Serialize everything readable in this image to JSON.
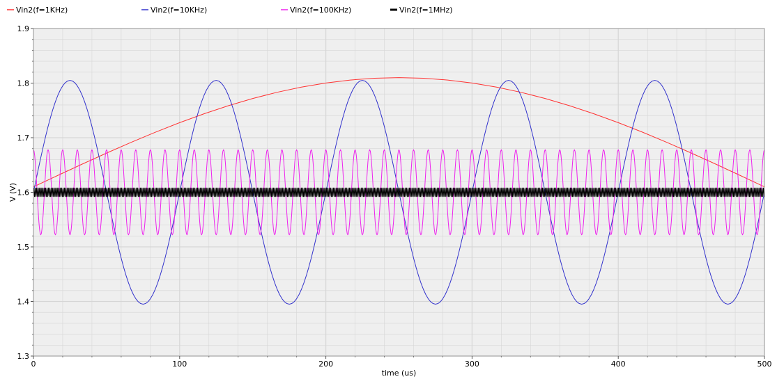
{
  "chart_data": {
    "type": "line",
    "title": "",
    "xlabel": "time (us)",
    "ylabel": "V (V)",
    "xlim": [
      0,
      500
    ],
    "ylim": [
      1.3,
      1.9
    ],
    "xticks": [
      "0",
      "100",
      "200",
      "300",
      "400",
      "500"
    ],
    "yticks": [
      "1.3",
      "1.4",
      "1.5",
      "1.6",
      "1.7",
      "1.8",
      "1.9"
    ],
    "grid": true,
    "legend_position": "top",
    "plot_background": "#efefef",
    "grid_color": "#d6d6d6",
    "series": [
      {
        "name": "Vin2(f=1KHz)",
        "color": "#ff3333",
        "offset": 1.61,
        "amplitude": 0.2,
        "frequency_khz": 1,
        "phase_deg": 0,
        "stroke": 1
      },
      {
        "name": "Vin2(f=10KHz)",
        "color": "#3333cc",
        "offset": 1.6,
        "amplitude": 0.205,
        "frequency_khz": 10,
        "phase_deg": 0,
        "stroke": 1
      },
      {
        "name": "Vin2(f=100KHz)",
        "color": "#ee22ee",
        "offset": 1.6,
        "amplitude": 0.078,
        "frequency_khz": 100,
        "phase_deg": 90,
        "stroke": 1
      },
      {
        "name": "Vin2(f=1MHz)",
        "color": "#000000",
        "offset": 1.6,
        "amplitude": 0.008,
        "frequency_khz": 1000,
        "phase_deg": 0,
        "stroke": 1
      }
    ]
  }
}
